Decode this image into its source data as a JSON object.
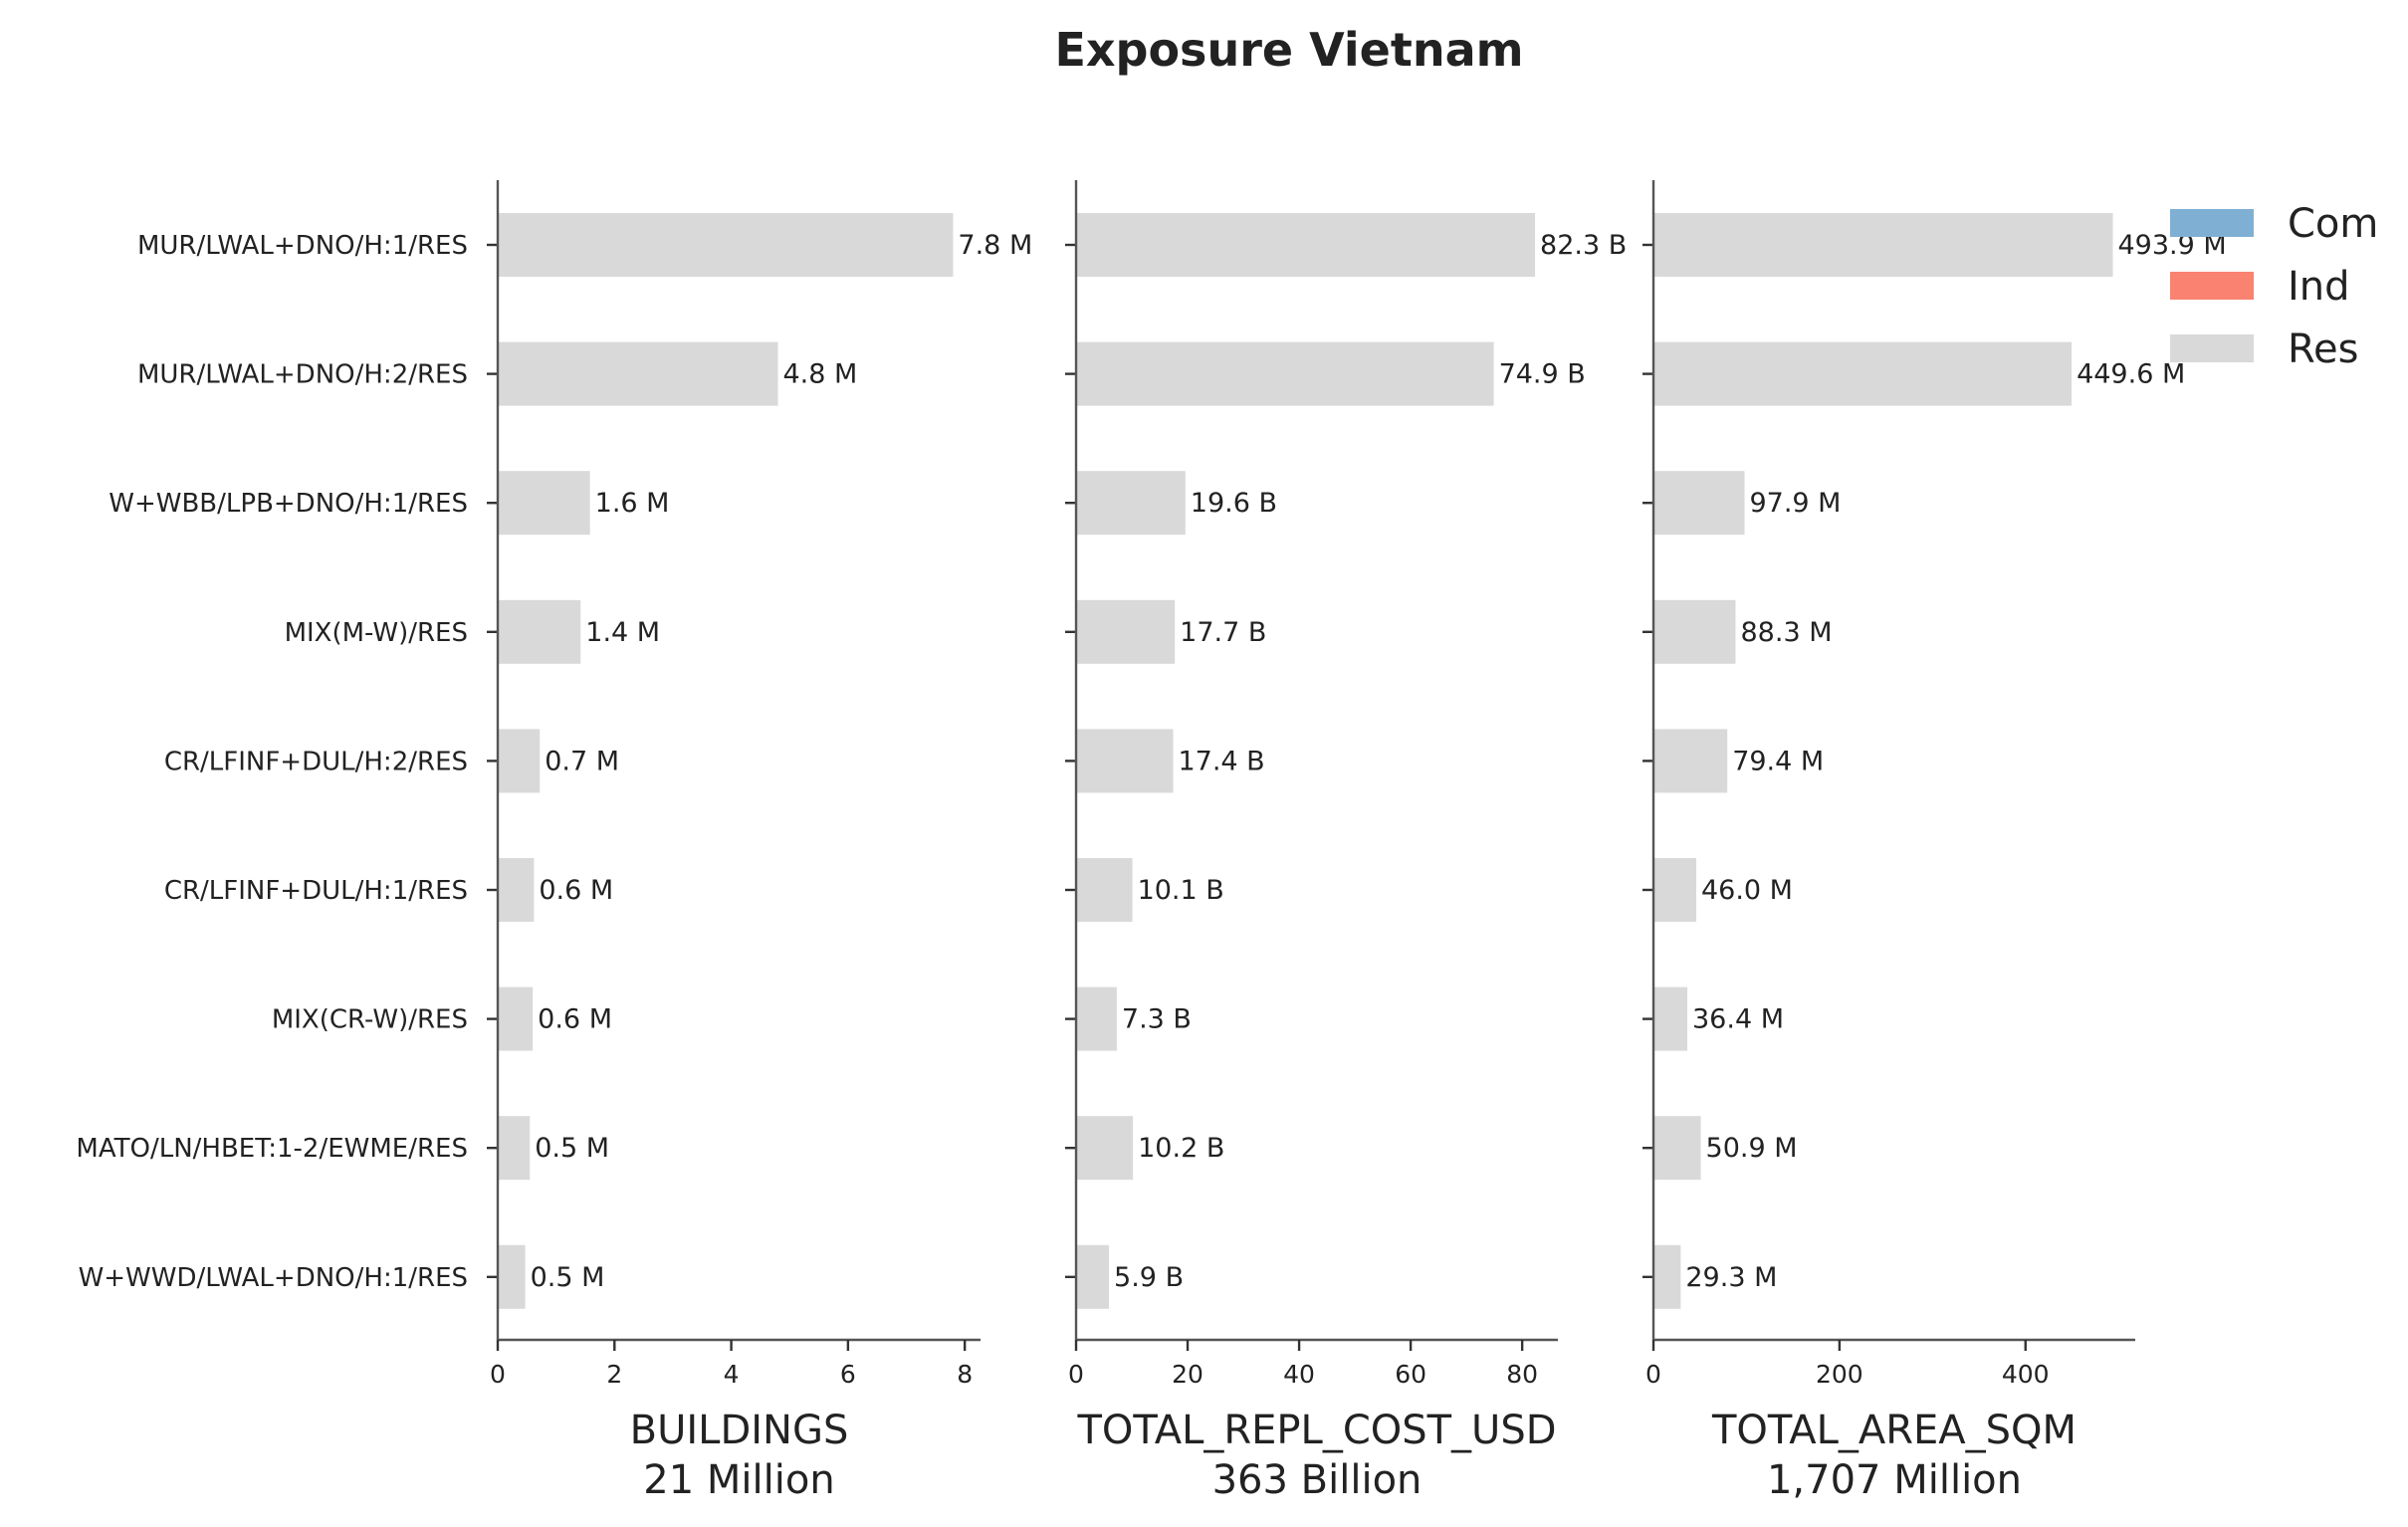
{
  "chart_data": {
    "type": "bar",
    "orientation": "horizontal",
    "title": "Exposure Vietnam",
    "categories": [
      "MUR/LWAL+DNO/H:1/RES",
      "MUR/LWAL+DNO/H:2/RES",
      "W+WBB/LPB+DNO/H:1/RES",
      "MIX(M-W)/RES",
      "CR/LFINF+DUL/H:2/RES",
      "CR/LFINF+DUL/H:1/RES",
      "MIX(CR-W)/RES",
      "MATO/LN/HBET:1-2/EWME/RES",
      "W+WWD/LWAL+DNO/H:1/RES"
    ],
    "legend": {
      "position": "top-right",
      "items": [
        {
          "name": "Com",
          "color": "#7fb0d4"
        },
        {
          "name": "Ind",
          "color": "#f98271"
        },
        {
          "name": "Res",
          "color": "#d9d9d9"
        }
      ]
    },
    "panels": [
      {
        "xlabel": "BUILDINGS",
        "total": "21 Million",
        "xlim": [
          0,
          8.27
        ],
        "ticks": [
          0,
          2,
          4,
          6,
          8
        ],
        "values": [
          7.8,
          4.8,
          1.58,
          1.42,
          0.72,
          0.62,
          0.6,
          0.55,
          0.47
        ],
        "labels": [
          "7.8 M",
          "4.8 M",
          "1.6 M",
          "1.4 M",
          "0.7 M",
          "0.6 M",
          "0.6 M",
          "0.5 M",
          "0.5 M"
        ]
      },
      {
        "xlabel": "TOTAL_REPL_COST_USD",
        "total": "363 Billion",
        "xlim": [
          0,
          86.4
        ],
        "ticks": [
          0,
          20,
          40,
          60,
          80
        ],
        "values": [
          82.3,
          74.9,
          19.6,
          17.7,
          17.4,
          10.1,
          7.3,
          10.2,
          5.9
        ],
        "labels": [
          "82.3 B",
          "74.9 B",
          "19.6 B",
          "17.7 B",
          "17.4 B",
          "10.1 B",
          "7.3 B",
          "10.2 B",
          "5.9 B"
        ]
      },
      {
        "xlabel": "TOTAL_AREA_SQM",
        "total": "1,707 Million",
        "xlim": [
          0,
          518
        ],
        "ticks": [
          0,
          200,
          400
        ],
        "values": [
          493.9,
          449.6,
          97.9,
          88.3,
          79.4,
          46.0,
          36.4,
          50.9,
          29.3
        ],
        "labels": [
          "493.9 M",
          "449.6 M",
          "97.9 M",
          "88.3 M",
          "79.4 M",
          "46.0 M",
          "36.4 M",
          "50.9 M",
          "29.3 M"
        ]
      }
    ],
    "grid": false
  }
}
